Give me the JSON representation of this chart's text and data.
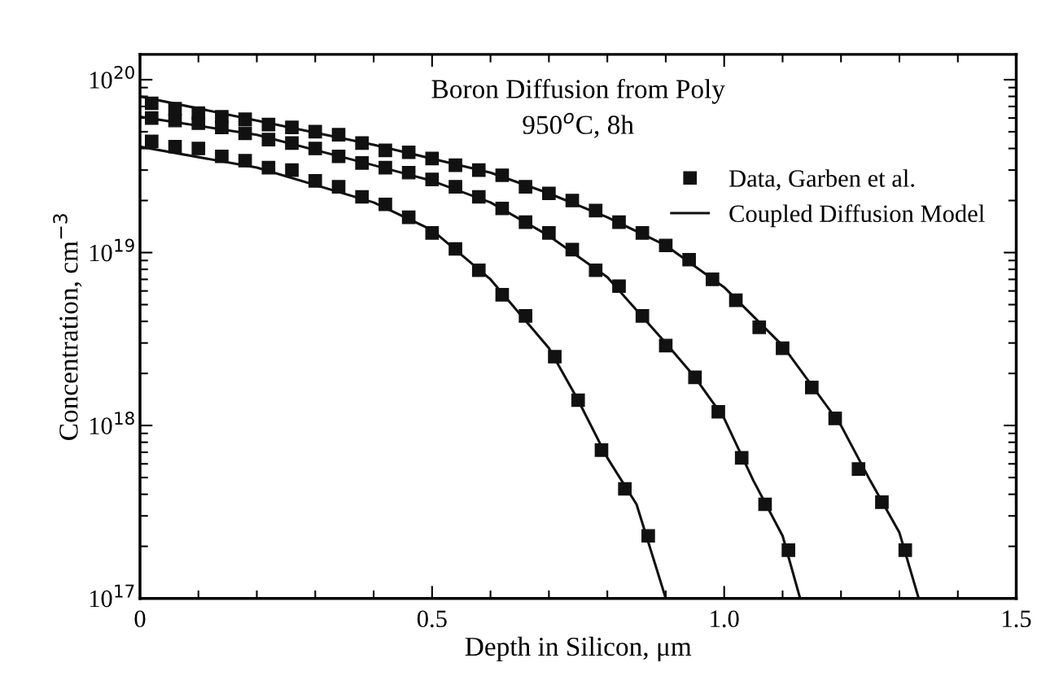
{
  "chart_data": {
    "type": "scatter",
    "title": "Boron Diffusion from Poly",
    "subtitle": "950$^{o}$C, 8h",
    "xlabel": "Depth in Silicon, μm",
    "ylabel": "Concentration, cm$^{−3}$",
    "log": "y",
    "xlim": [
      0,
      1.5
    ],
    "ylim": [
      1e+17,
      1.4e+20
    ],
    "xticks": [
      0,
      0.5,
      {
        "value": 1.0,
        "label": "1.0"
      },
      1.5
    ],
    "yticks": [
      {
        "value": 1e+17,
        "label": "10$^{17}$"
      },
      {
        "value": 1e+18,
        "label": "10$^{18}$"
      },
      {
        "value": 1e+19,
        "label": "10$^{19}$"
      },
      {
        "value": 1e+20,
        "label": "10$^{20}$"
      }
    ],
    "grid": false,
    "legend": "top right",
    "series": [
      {
        "name": "Data, Garben et al.",
        "marker": "square",
        "color": "#111111",
        "x": [
          0.02,
          0.06,
          0.1,
          0.14,
          0.18,
          0.22,
          0.26,
          0.3,
          0.34,
          0.38,
          0.42,
          0.46,
          0.5,
          0.54,
          0.58,
          0.62,
          0.66,
          0.7,
          0.74,
          0.78,
          0.82,
          0.86,
          0.9,
          0.94,
          0.98,
          1.02,
          1.06,
          1.1,
          1.15,
          1.19,
          1.23,
          1.27,
          1.31
        ],
        "values": [
          7.3e+19,
          6.8e+19,
          6.4e+19,
          6.1e+19,
          5.9e+19,
          5.5e+19,
          5.3e+19,
          5e+19,
          4.8e+19,
          4.3e+19,
          3.9e+19,
          3.8e+19,
          3.5e+19,
          3.2e+19,
          3e+19,
          2.8e+19,
          2.4e+19,
          2.2e+19,
          2e+19,
          1.75e+19,
          1.5e+19,
          1.3e+19,
          1.1e+19,
          9.1e+18,
          7e+18,
          5.3e+18,
          3.7e+18,
          2.8e+18,
          1.66e+18,
          1.1e+18,
          5.6e+17,
          3.6e+17,
          1.9e+17
        ]
      },
      {
        "marker": "square",
        "color": "#111111",
        "x": [
          0.02,
          0.06,
          0.1,
          0.14,
          0.18,
          0.22,
          0.26,
          0.3,
          0.34,
          0.38,
          0.42,
          0.46,
          0.5,
          0.54,
          0.58,
          0.62,
          0.66,
          0.7,
          0.74,
          0.78,
          0.82,
          0.86,
          0.9,
          0.95,
          0.99,
          1.03,
          1.07,
          1.11
        ],
        "values": [
          6e+19,
          5.8e+19,
          5.6e+19,
          5.3e+19,
          4.9e+19,
          4.5e+19,
          4.3e+19,
          4e+19,
          3.6e+19,
          3.3e+19,
          3.1e+19,
          2.9e+19,
          2.65e+19,
          2.4e+19,
          2.1e+19,
          1.8e+19,
          1.5e+19,
          1.3e+19,
          1.04e+19,
          7.9e+18,
          6.4e+18,
          4.3e+18,
          2.9e+18,
          1.9e+18,
          1.2e+18,
          6.5e+17,
          3.5e+17,
          1.9e+17
        ]
      },
      {
        "marker": "square",
        "color": "#111111",
        "x": [
          0.02,
          0.06,
          0.1,
          0.14,
          0.18,
          0.22,
          0.26,
          0.3,
          0.34,
          0.38,
          0.42,
          0.46,
          0.5,
          0.54,
          0.58,
          0.62,
          0.66,
          0.71,
          0.75,
          0.79,
          0.83,
          0.87
        ],
        "values": [
          4.4e+19,
          4.1e+19,
          4e+19,
          3.6e+19,
          3.4e+19,
          3.1e+19,
          3e+19,
          2.6e+19,
          2.4e+19,
          2.1e+19,
          1.9e+19,
          1.6e+19,
          1.3e+19,
          1.05e+19,
          7.9e+18,
          5.7e+18,
          4.3e+18,
          2.5e+18,
          1.4e+18,
          7.2e+17,
          4.3e+17,
          2.3e+17
        ]
      },
      {
        "name": "Coupled Diffusion Model",
        "type": "line",
        "marker": "none",
        "line_style": "solid",
        "color": "#111111",
        "x": [
          0,
          0.2,
          0.4,
          0.6,
          0.7,
          0.8,
          0.9,
          1.0,
          1.1,
          1.2,
          1.25,
          1.3,
          1.333
        ],
        "values": [
          8e+19,
          5.8e+19,
          4.2e+19,
          2.9e+19,
          2.2e+19,
          1.6e+19,
          1.1e+19,
          6.3e+18,
          2.9e+18,
          1e+18,
          4.8e+17,
          2.4e+17,
          1e+17
        ]
      },
      {
        "type": "line",
        "marker": "none",
        "line_style": "solid",
        "color": "#111111",
        "x": [
          0,
          0.2,
          0.4,
          0.5,
          0.6,
          0.7,
          0.8,
          0.9,
          0.95,
          1.0,
          1.05,
          1.1,
          1.13
        ],
        "values": [
          6.1e+19,
          4.8e+19,
          3.2e+19,
          2.6e+19,
          1.95e+19,
          1.25e+19,
          7.2e+18,
          3e+18,
          1.9e+18,
          1.1e+18,
          4.8e+17,
          2.3e+17,
          1e+17
        ]
      },
      {
        "type": "line",
        "marker": "none",
        "line_style": "solid",
        "color": "#111111",
        "x": [
          0,
          0.2,
          0.4,
          0.5,
          0.6,
          0.7,
          0.75,
          0.8,
          0.85,
          0.9
        ],
        "values": [
          4.1e+19,
          3.1e+19,
          1.95e+19,
          1.35e+19,
          7e+18,
          2.8e+18,
          1.4e+18,
          6.5e+17,
          3.5e+17,
          1e+17
        ]
      }
    ]
  }
}
